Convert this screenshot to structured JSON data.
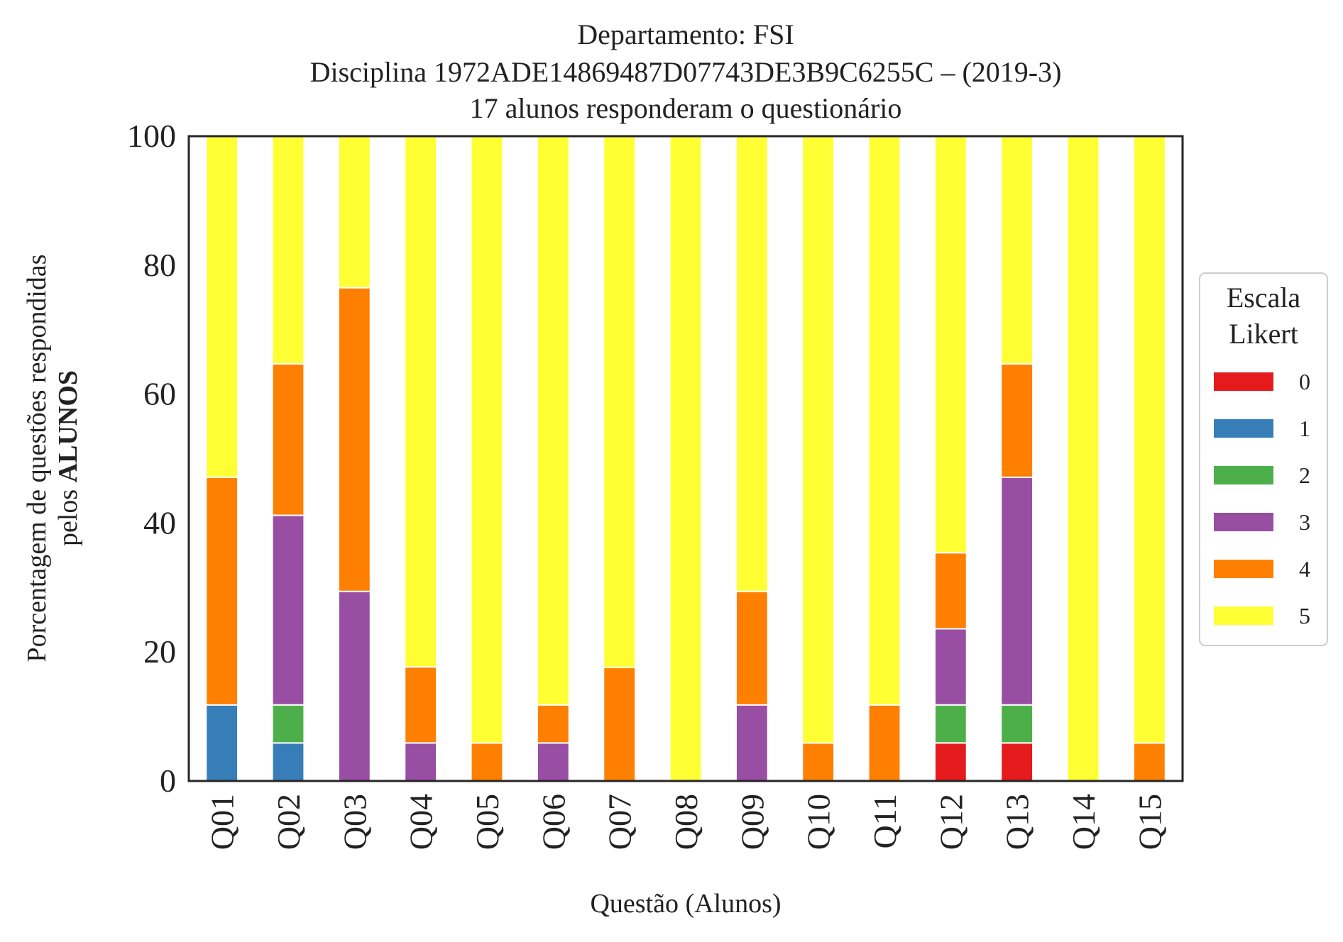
{
  "chart_data": {
    "type": "bar",
    "stacked": true,
    "title_lines": [
      "Departamento: FSI",
      "Disciplina 1972ADE14869487D07743DE3B9C6255C – (2019-3)",
      "17 alunos responderam o questionário"
    ],
    "xlabel": "Questão (Alunos)",
    "ylabel_line1": "Porcentagem de questões respondidas",
    "ylabel_line2_prefix": "pelos ",
    "ylabel_line2_bold": "ALUNOS",
    "ylim": [
      0,
      100
    ],
    "yticks": [
      "0",
      "20",
      "40",
      "60",
      "80",
      "100"
    ],
    "categories": [
      "Q01",
      "Q02",
      "Q03",
      "Q04",
      "Q05",
      "Q06",
      "Q07",
      "Q08",
      "Q09",
      "Q10",
      "Q11",
      "Q12",
      "Q13",
      "Q14",
      "Q15"
    ],
    "legend": {
      "title_line1": "Escala",
      "title_line2": "Likert",
      "position": "right"
    },
    "series": [
      {
        "name": "0",
        "color": "#e41a1c",
        "values": [
          0,
          0,
          0,
          0,
          0,
          0,
          0,
          0,
          0,
          0,
          0,
          5.9,
          5.9,
          0,
          0
        ]
      },
      {
        "name": "1",
        "color": "#377eb8",
        "values": [
          11.8,
          5.9,
          0,
          0,
          0,
          0,
          0,
          0,
          0,
          0,
          0,
          0,
          0,
          0,
          0
        ]
      },
      {
        "name": "2",
        "color": "#4daf4a",
        "values": [
          0,
          5.9,
          0,
          0,
          0,
          0,
          0,
          0,
          0,
          0,
          0,
          5.9,
          5.9,
          0,
          0
        ]
      },
      {
        "name": "3",
        "color": "#984ea3",
        "values": [
          0,
          29.4,
          29.4,
          5.9,
          0,
          5.9,
          0,
          0,
          11.8,
          0,
          0,
          11.8,
          35.3,
          0,
          0
        ]
      },
      {
        "name": "4",
        "color": "#ff7f00",
        "values": [
          35.3,
          23.5,
          47.1,
          11.8,
          5.9,
          5.9,
          17.6,
          0,
          17.6,
          5.9,
          11.8,
          11.8,
          17.6,
          0,
          5.9
        ]
      },
      {
        "name": "5",
        "color": "#ffff33",
        "values": [
          52.9,
          35.3,
          23.5,
          82.3,
          94.1,
          88.2,
          82.4,
          100,
          70.6,
          94.1,
          88.2,
          64.7,
          35.3,
          100,
          94.1
        ]
      }
    ]
  }
}
